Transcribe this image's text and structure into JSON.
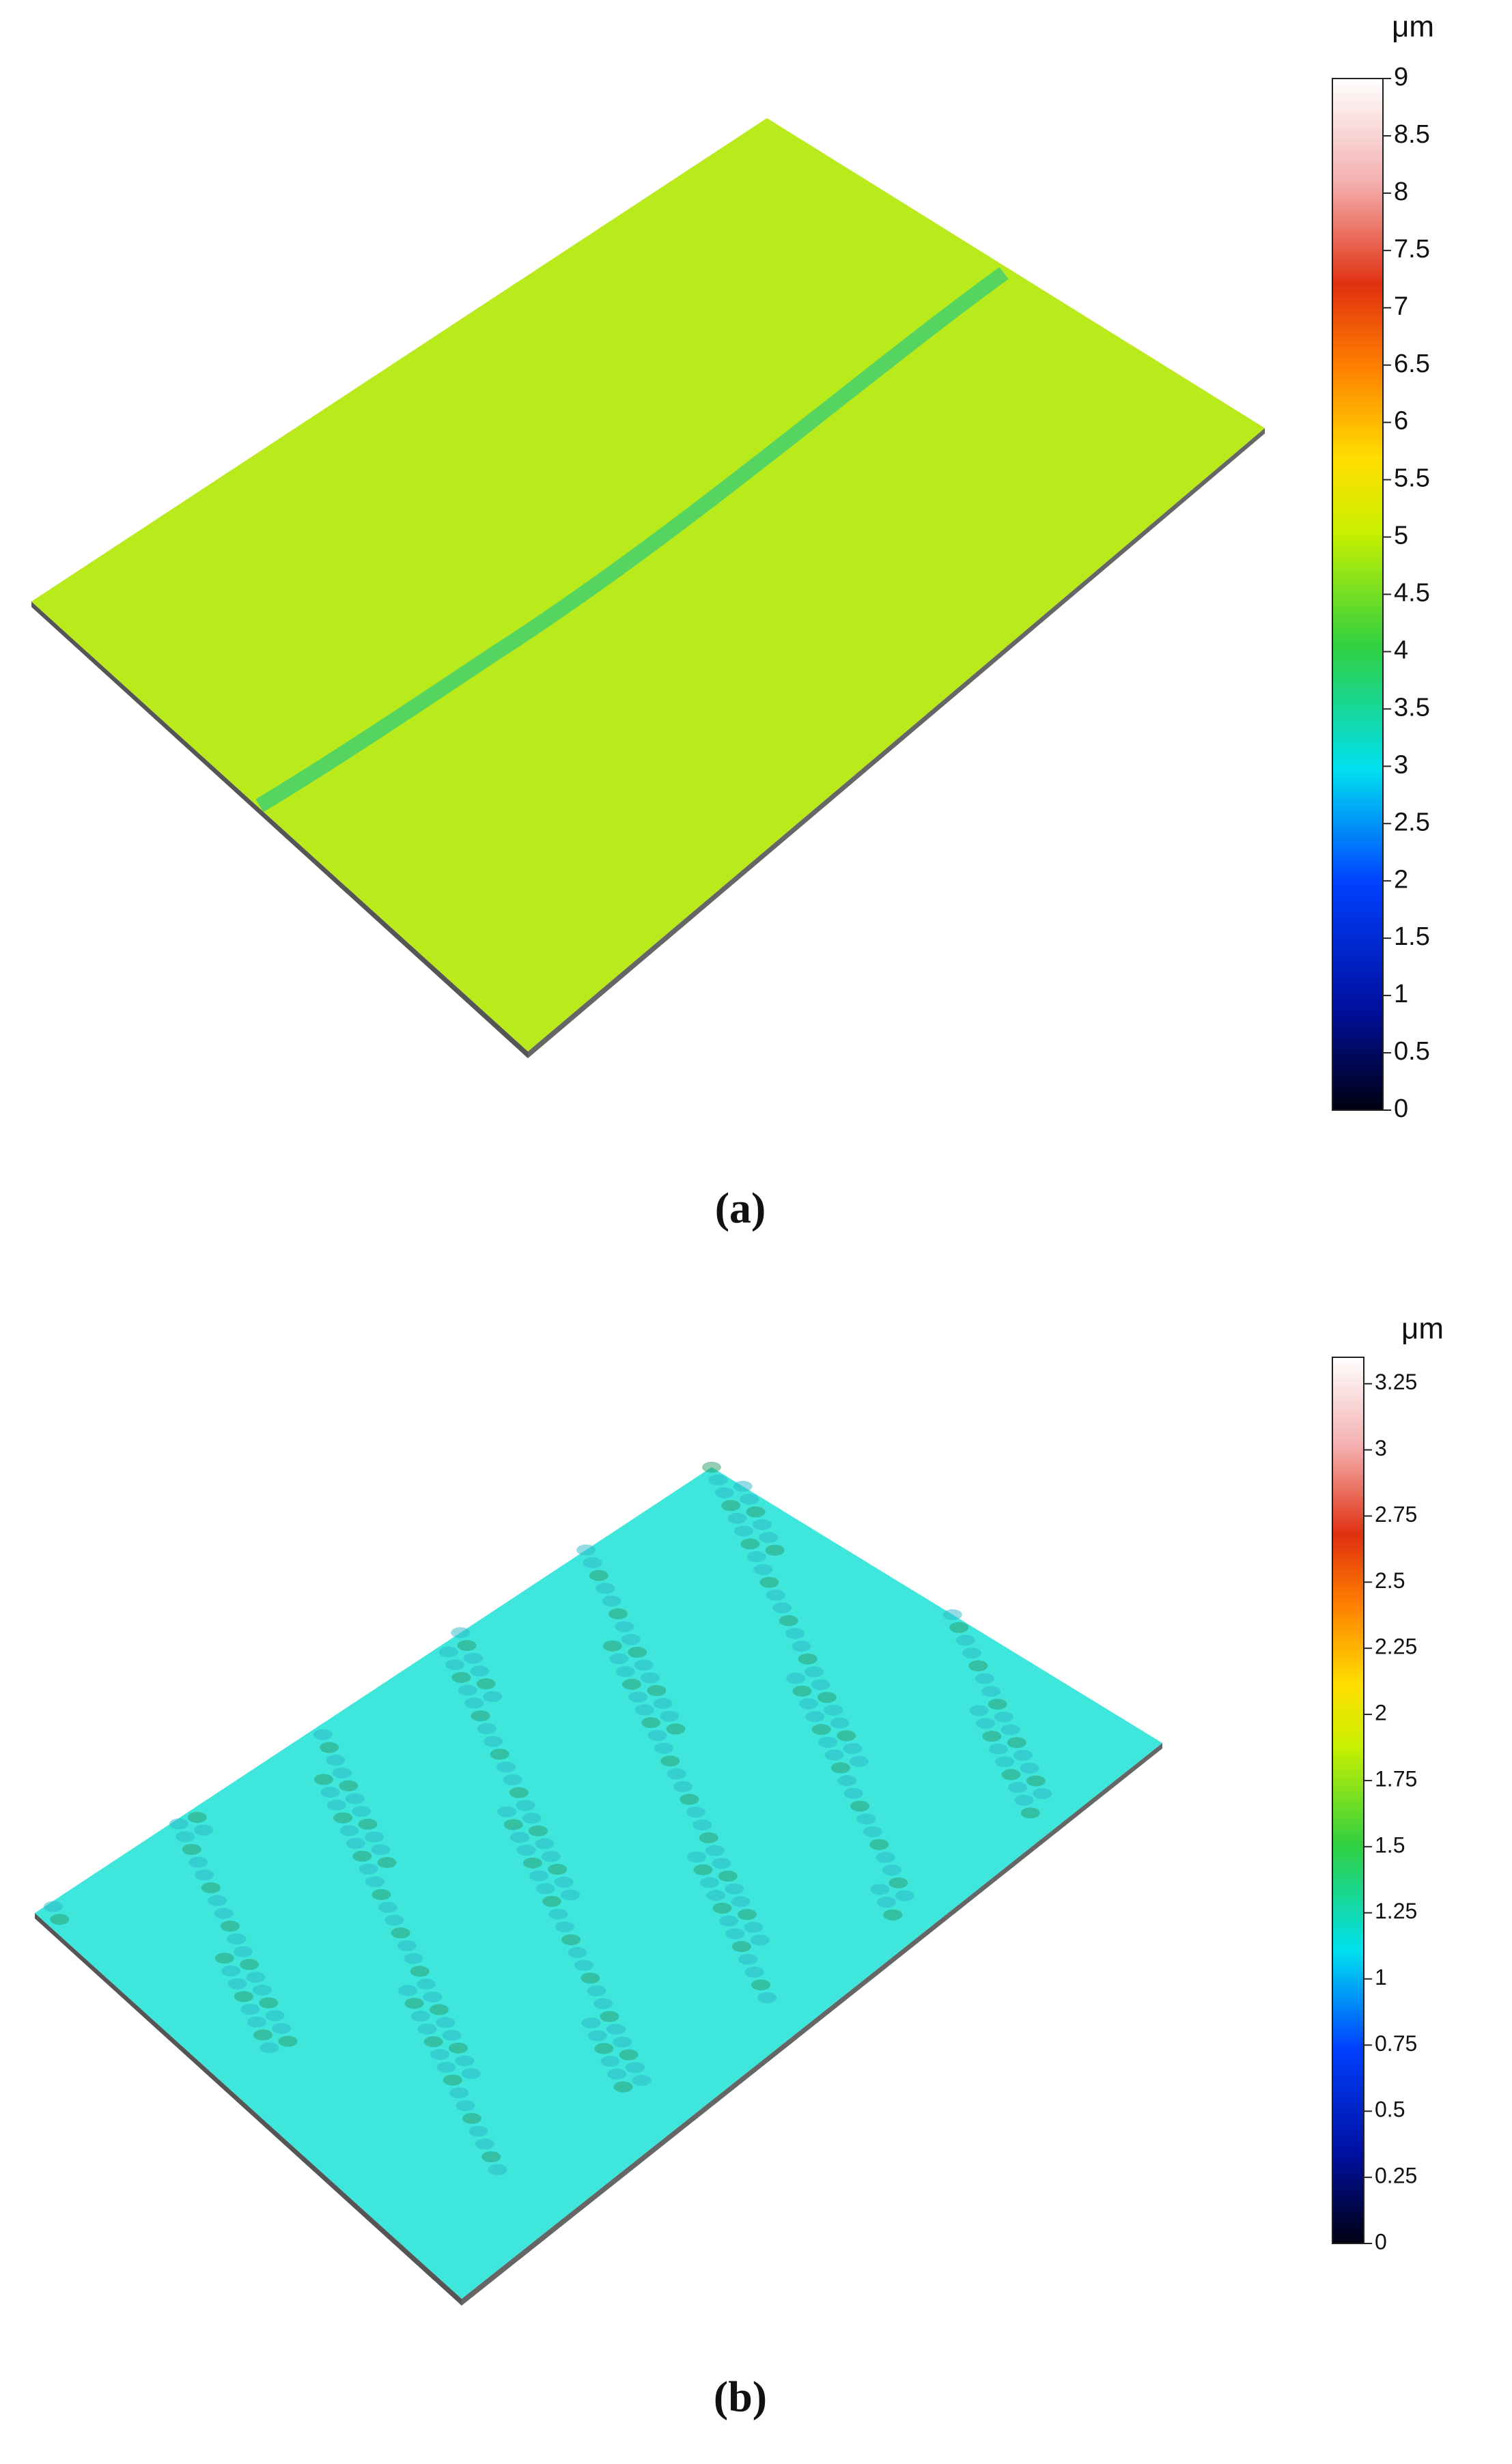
{
  "chart_data": [
    {
      "type": "surface",
      "label": "(a)",
      "unit": "μm",
      "surface_color": "#b8ea1c",
      "clim": [
        0,
        9
      ],
      "cticks": [
        0,
        0.5,
        1,
        1.5,
        2,
        2.5,
        3,
        3.5,
        4,
        4.5,
        5,
        5.5,
        6,
        6.5,
        7,
        7.5,
        8,
        8.5,
        9
      ]
    },
    {
      "type": "surface",
      "label": "(b)",
      "unit": "μm",
      "surface_color": "#3fe6dc",
      "clim": [
        0,
        3.35
      ],
      "cticks": [
        0,
        0.25,
        0.5,
        0.75,
        1,
        1.25,
        1.5,
        1.75,
        2,
        2.25,
        2.5,
        2.75,
        3,
        3.25
      ]
    }
  ]
}
